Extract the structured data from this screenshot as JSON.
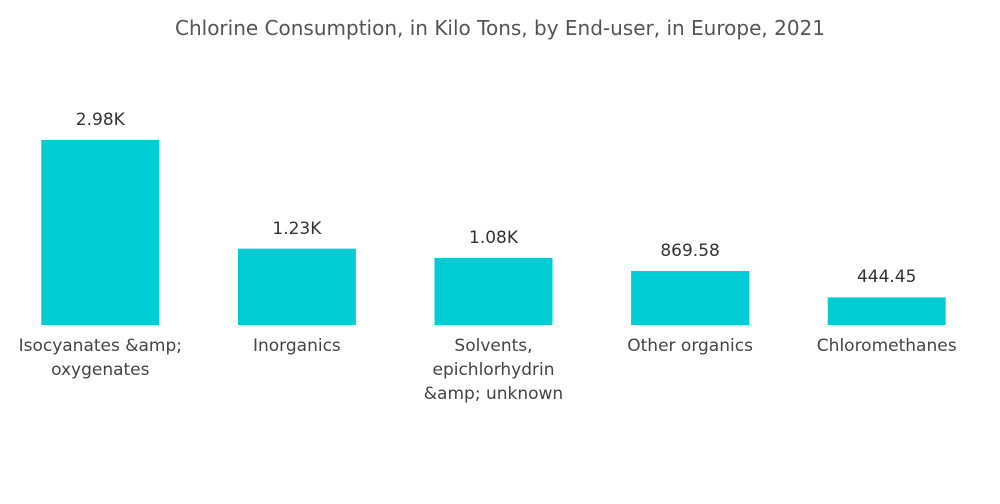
{
  "chart_data": {
    "type": "bar",
    "title": "Chlorine Consumption, in Kilo Tons, by End-user, in Europe, 2021",
    "categories": [
      "Isocyanates &amp; oxygenates",
      "Inorganics",
      "Solvents, epichlorhydrin &amp; unknown",
      "Other organics",
      "Chloromethanes"
    ],
    "values": [
      2980,
      1230,
      1080,
      869.58,
      444.45
    ],
    "value_labels": [
      "2.98K",
      "1.23K",
      "1.08K",
      "869.58",
      "444.45"
    ],
    "color": "#00ccd3"
  }
}
